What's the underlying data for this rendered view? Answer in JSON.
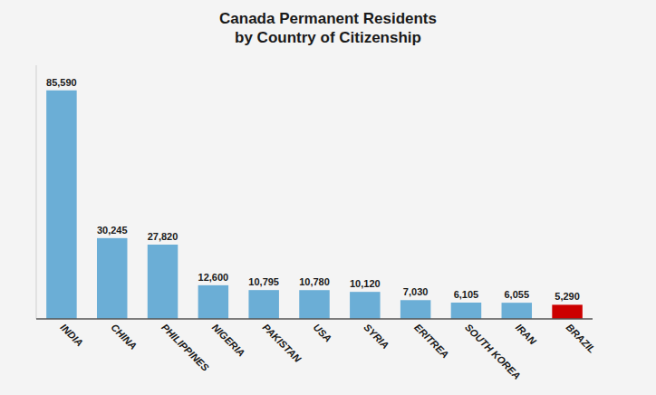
{
  "chart_data": {
    "type": "bar",
    "title": "Canada Permanent Residents\nby Country of Citizenship",
    "categories": [
      "INDIA",
      "CHINA",
      "PHILIPPINES",
      "NIGERIA",
      "PAKISTAN",
      "USA",
      "SYRIA",
      "ERITREA",
      "SOUTH KOREA",
      "IRAN",
      "BRAZIL"
    ],
    "values": [
      85590,
      30245,
      27820,
      12600,
      10795,
      10780,
      10120,
      7030,
      6105,
      6055,
      5290
    ],
    "value_labels": [
      "85,590",
      "30,245",
      "27,820",
      "12,600",
      "10,795",
      "10,780",
      "10,120",
      "7,030",
      "6,105",
      "6,055",
      "5,290"
    ],
    "colors": [
      "#6baed6",
      "#6baed6",
      "#6baed6",
      "#6baed6",
      "#6baed6",
      "#6baed6",
      "#6baed6",
      "#6baed6",
      "#6baed6",
      "#6baed6",
      "#cc0000"
    ],
    "ylim": [
      0,
      95000
    ],
    "grid": false,
    "data_labels": true,
    "tick_labels": "x"
  }
}
